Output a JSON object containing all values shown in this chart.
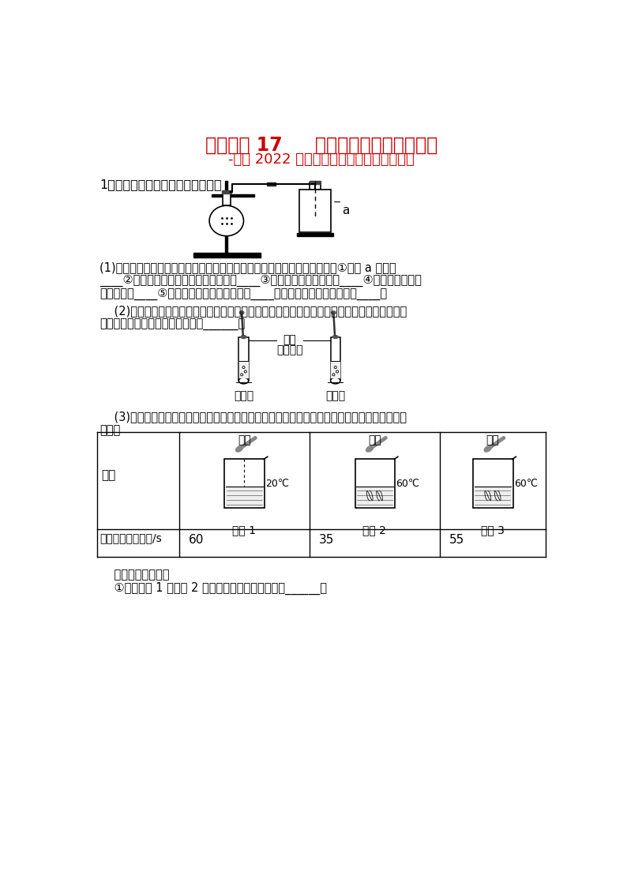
{
  "title": "高分突破 17     影响化学实验因素的探究",
  "subtitle": "-备战 2022 年中考化学实验探究题高分突破",
  "title_color": "#CC0000",
  "subtitle_color": "#CC0000",
  "bg_color": "#FFFFFF",
  "section1_header": "1．观察实验现象，得出实验结论。",
  "p1_line1": "(1)如图所示为实验室用过氧化氢溶液和二氧化锰的混合物制取氧气，写出：①仪器 a 的名称",
  "p1_line2": "____②用向上排空气法收集氧气的理由是____③该反应的化学方程式为____④检验氧气是否集",
  "p1_line3": "满的方法是____⑤红磷在空气中燃烧的现象是____，发生反应的化学方程式为____。",
  "p2_line1": "    (2)下图描述的是：酸溶液使指示剂变色的实验，发现紫色石蕊溶液均变为红色，产生这一现象",
  "p2_line2": "的根本原因是这两种酸溶液都含有______。",
  "p3_line1": "    (3)在探究影响溶质溶解快慢的因素，比较等量硫酸铜在水中溶解的快慢时，设计并进行了如下",
  "p3_line2": "实验：",
  "label_a": "a",
  "label_purple1": "紫色",
  "label_purple2": "石蕊溶液",
  "label_xiyansuan": "稀盐酸",
  "label_xiliusuan": "稀硫酸",
  "tbl_row1_label": "实验",
  "tbl_row2_label": "完全溶解所需时间/s",
  "col_labels": [
    "实验 1",
    "实验 2",
    "实验 3"
  ],
  "powder_labels": [
    "粉末",
    "粉末",
    "块状"
  ],
  "temp_labels": [
    "20℃",
    "60℃",
    "60℃"
  ],
  "time_vals": [
    "60",
    "35",
    "55"
  ],
  "bottom_line1": "    请你回答下列问题",
  "bottom_line2": "    ①对比实验 1 和实验 2 的现象，可以得出的结论是______。"
}
